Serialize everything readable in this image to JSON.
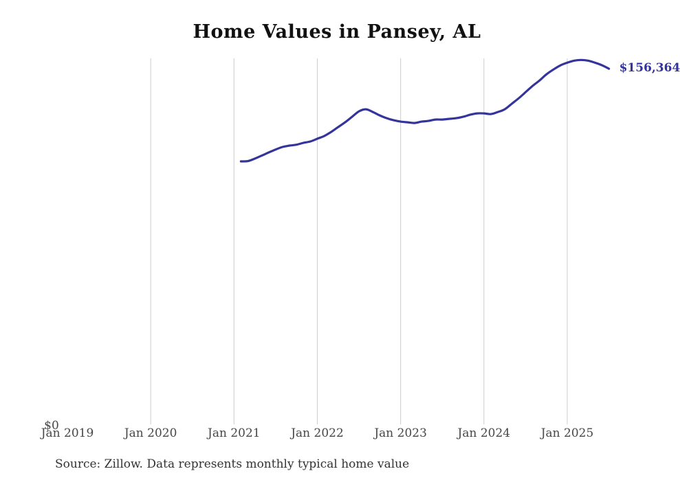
{
  "chart_data": {
    "type": "line",
    "title": "Home Values in Pansey, AL",
    "xlabel": "",
    "ylabel": "",
    "y_zero_label": "$0",
    "current_value_label": "$156,364",
    "x_tick_labels": [
      "Jan 2019",
      "Jan 2020",
      "Jan 2021",
      "Jan 2022",
      "Jan 2023",
      "Jan 2024",
      "Jan 2025"
    ],
    "x_axis_start": "2019-01",
    "ylim": [
      0,
      160900
    ],
    "grid": "vertical gridlines at yearly ticks (none at first tick), no horizontal gridlines, no axis lines",
    "legend": "none",
    "series": [
      {
        "name": "Monthly typical home value",
        "color": "#34349b",
        "months": [
          "2021-02",
          "2021-03",
          "2021-04",
          "2021-05",
          "2021-06",
          "2021-07",
          "2021-08",
          "2021-09",
          "2021-10",
          "2021-11",
          "2021-12",
          "2022-01",
          "2022-02",
          "2022-03",
          "2022-04",
          "2022-05",
          "2022-06",
          "2022-07",
          "2022-08",
          "2022-09",
          "2022-10",
          "2022-11",
          "2022-12",
          "2023-01",
          "2023-02",
          "2023-03",
          "2023-04",
          "2023-05",
          "2023-06",
          "2023-07",
          "2023-08",
          "2023-09",
          "2023-10",
          "2023-11",
          "2023-12",
          "2024-01",
          "2024-02",
          "2024-03",
          "2024-04",
          "2024-05",
          "2024-06",
          "2024-07",
          "2024-08",
          "2024-09",
          "2024-10",
          "2024-11",
          "2024-12",
          "2025-01",
          "2025-02",
          "2025-03",
          "2025-04",
          "2025-05",
          "2025-06",
          "2025-07"
        ],
        "values": [
          115800,
          115900,
          117000,
          118300,
          119700,
          121000,
          122100,
          122700,
          123100,
          123900,
          124500,
          125700,
          126900,
          128700,
          130800,
          132900,
          135300,
          137700,
          138600,
          137400,
          135900,
          134700,
          133800,
          133200,
          132900,
          132600,
          133200,
          133500,
          134100,
          134100,
          134400,
          134700,
          135300,
          136200,
          136800,
          136800,
          136500,
          137400,
          138600,
          141000,
          143400,
          146100,
          148800,
          151200,
          153900,
          156000,
          157800,
          159000,
          159900,
          160200,
          159900,
          159000,
          157900,
          156364
        ]
      }
    ]
  },
  "footer": {
    "source_note": "Source: Zillow. Data represents monthly typical home value"
  },
  "colors": {
    "line": "#34349b",
    "value_label": "#33339b",
    "gridline": "#cccccc",
    "tick_text": "#474747",
    "title_text": "#111111",
    "source_text": "#333333",
    "background": "#ffffff"
  }
}
